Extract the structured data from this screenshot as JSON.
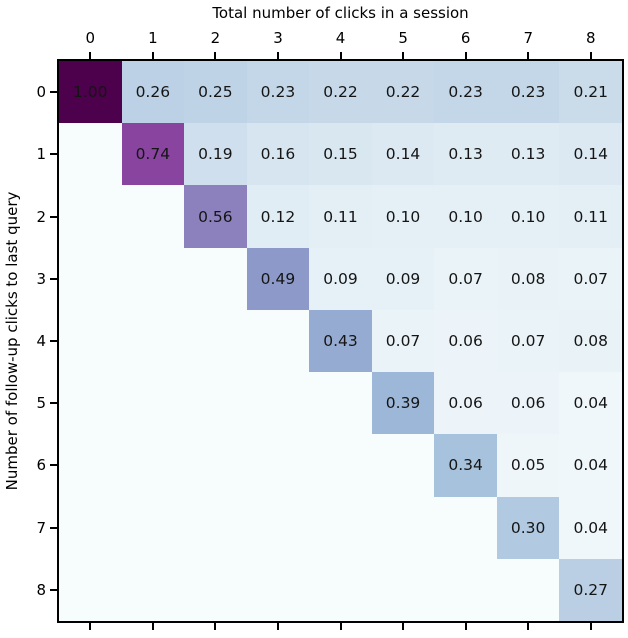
{
  "chart_data": {
    "type": "heatmap",
    "title": "Total number of clicks in a session",
    "ylabel": "Number of follow-up clicks to last query",
    "x_ticks": [
      "0",
      "1",
      "2",
      "3",
      "4",
      "5",
      "6",
      "7",
      "8"
    ],
    "y_ticks": [
      "0",
      "1",
      "2",
      "3",
      "4",
      "5",
      "6",
      "7",
      "8"
    ],
    "value_range": [
      0,
      1
    ],
    "value_format_decimals": 2,
    "colormap": "BuPu",
    "colormap_stops": [
      [
        0.0,
        "#f7fcfd"
      ],
      [
        0.125,
        "#e0ecf4"
      ],
      [
        0.25,
        "#bfd3e6"
      ],
      [
        0.375,
        "#9ebcda"
      ],
      [
        0.5,
        "#8c96c6"
      ],
      [
        0.625,
        "#8c6bb1"
      ],
      [
        0.75,
        "#88419d"
      ],
      [
        0.875,
        "#810f7c"
      ],
      [
        1.0,
        "#4d004b"
      ]
    ],
    "empty_cell_value": 0,
    "cell_text_color": "#151515",
    "frame_color": "#000000",
    "matrix": [
      [
        1.0,
        0.26,
        0.25,
        0.23,
        0.22,
        0.22,
        0.23,
        0.23,
        0.21
      ],
      [
        null,
        0.74,
        0.19,
        0.16,
        0.15,
        0.14,
        0.13,
        0.13,
        0.14
      ],
      [
        null,
        null,
        0.56,
        0.12,
        0.11,
        0.1,
        0.1,
        0.1,
        0.11
      ],
      [
        null,
        null,
        null,
        0.49,
        0.09,
        0.09,
        0.07,
        0.08,
        0.07
      ],
      [
        null,
        null,
        null,
        null,
        0.43,
        0.07,
        0.06,
        0.07,
        0.08
      ],
      [
        null,
        null,
        null,
        null,
        null,
        0.39,
        0.06,
        0.06,
        0.04
      ],
      [
        null,
        null,
        null,
        null,
        null,
        null,
        0.34,
        0.05,
        0.04
      ],
      [
        null,
        null,
        null,
        null,
        null,
        null,
        null,
        0.3,
        0.04
      ],
      [
        null,
        null,
        null,
        null,
        null,
        null,
        null,
        null,
        0.27
      ]
    ]
  }
}
